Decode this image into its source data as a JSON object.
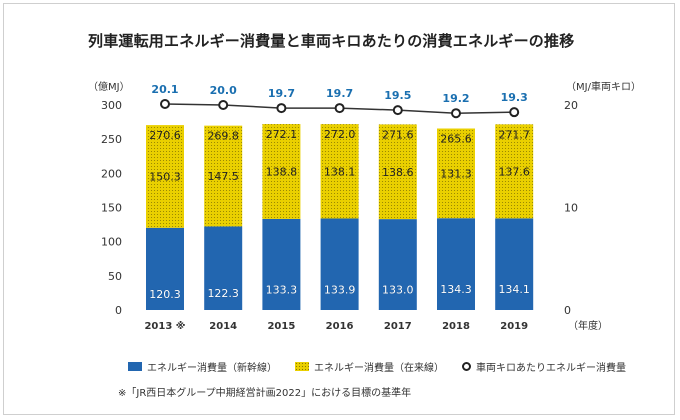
{
  "title": "列車運転用エネルギー消費量と車両キロあたりの消費エネルギーの推移",
  "colors": {
    "shinkansen": "#2266b0",
    "conventional": "#ead000",
    "line": "#333333",
    "intensity_label": "#1a6fb0"
  },
  "chart_data": {
    "type": "bar",
    "stacked": true,
    "categories": [
      "2013 ※",
      "2014",
      "2015",
      "2016",
      "2017",
      "2018",
      "2019"
    ],
    "series": [
      {
        "name": "エネルギー消費量（新幹線）",
        "values": [
          120.3,
          122.3,
          133.3,
          133.9,
          133.0,
          134.3,
          134.1
        ]
      },
      {
        "name": "エネルギー消費量（在来線）",
        "values": [
          150.3,
          147.5,
          138.8,
          138.1,
          138.6,
          131.3,
          137.6
        ]
      }
    ],
    "totals": [
      "270.6",
      "269.8",
      "272.1",
      "272.0",
      "271.6",
      "265.6",
      "271.7"
    ],
    "line_series": {
      "name": "車両キロあたりエネルギー消費量",
      "values": [
        20.1,
        20.0,
        19.7,
        19.7,
        19.5,
        19.2,
        19.3
      ],
      "labels": [
        "20.1",
        "20.0",
        "19.7",
        "19.7",
        "19.5",
        "19.2",
        "19.3"
      ]
    },
    "shinkansen_labels": [
      "120.3",
      "122.3",
      "133.3",
      "133.9",
      "133.0",
      "134.3",
      "134.1"
    ],
    "conventional_labels": [
      "150.3",
      "147.5",
      "138.8",
      "138.1",
      "138.6",
      "131.3",
      "137.6"
    ],
    "y_left": {
      "label": "（億MJ）",
      "range": [
        0,
        300
      ],
      "ticks": [
        "0",
        "50",
        "100",
        "150",
        "200",
        "250",
        "300"
      ]
    },
    "y_right": {
      "label": "（MJ/車両キロ）",
      "range": [
        0,
        20
      ],
      "ticks": [
        "0",
        "10",
        "20"
      ]
    },
    "x_unit": "（年度）"
  },
  "legend": {
    "shinkansen": "エネルギー消費量（新幹線）",
    "conventional": "エネルギー消費量（在来線）",
    "intensity": "車両キロあたりエネルギー消費量"
  },
  "footnote": "※「JR西日本グループ中期経営計画2022」における目標の基準年"
}
